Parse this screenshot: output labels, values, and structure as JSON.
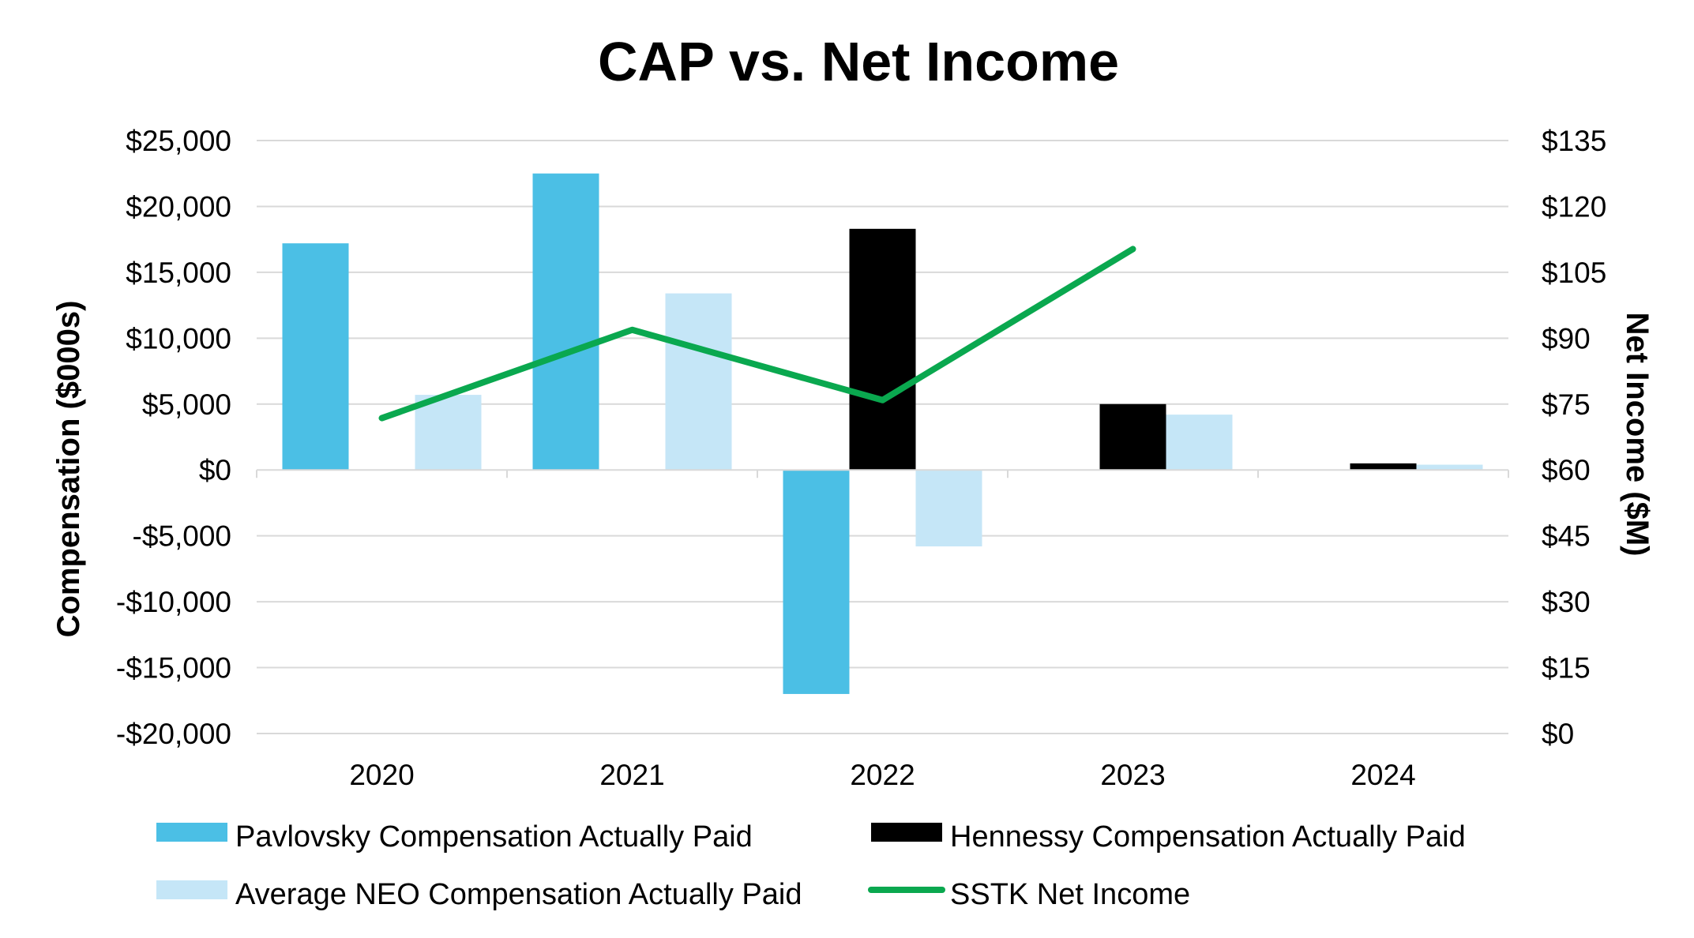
{
  "chart_data": {
    "type": "bar",
    "title": "CAP vs. Net Income",
    "categories": [
      "2020",
      "2021",
      "2022",
      "2023",
      "2024"
    ],
    "ylabel": "Compensation ($000s)",
    "y2label": "Net Income ($M)",
    "ylim": [
      -20000,
      25000
    ],
    "y2lim": [
      0,
      135
    ],
    "yticks": [
      -20000,
      -15000,
      -10000,
      -5000,
      0,
      5000,
      10000,
      15000,
      20000,
      25000
    ],
    "yticklabels": [
      "-$20,000",
      "-$15,000",
      "-$10,000",
      "-$5,000",
      "$0",
      "$5,000",
      "$10,000",
      "$15,000",
      "$20,000",
      "$25,000"
    ],
    "y2ticks": [
      0,
      15,
      30,
      45,
      60,
      75,
      90,
      105,
      120,
      135
    ],
    "y2ticklabels": [
      "$0",
      "$15",
      "$30",
      "$45",
      "$60",
      "$75",
      "$90",
      "$105",
      "$120",
      "$135"
    ],
    "grid": true,
    "legend_position": "bottom",
    "series": [
      {
        "name": "Pavlovsky Compensation Actually Paid",
        "type": "bar",
        "axis": "left",
        "color": "#4bbfe5",
        "values": [
          17200,
          22500,
          -17000,
          null,
          null
        ]
      },
      {
        "name": "Hennessy Compensation Actually Paid",
        "type": "bar",
        "axis": "left",
        "color": "#000000",
        "values": [
          null,
          null,
          18300,
          5000,
          500
        ]
      },
      {
        "name": "Average NEO Compensation Actually Paid",
        "type": "bar",
        "axis": "left",
        "color": "#c5e6f7",
        "values": [
          5700,
          13400,
          -5800,
          4200,
          400
        ]
      },
      {
        "name": "SSTK Net Income",
        "type": "line",
        "axis": "right",
        "color": "#0aa84f",
        "values": [
          71.8,
          91.9,
          75.9,
          110.3,
          null
        ]
      }
    ]
  }
}
